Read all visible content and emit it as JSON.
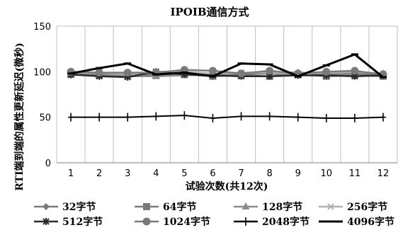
{
  "chart_data": {
    "type": "line",
    "title": "IPOIB通信方式",
    "xlabel": "试验次数(共12次)",
    "ylabel": "RTI端到端的属性更新延迟(微秒)",
    "categories": [
      "1",
      "2",
      "3",
      "4",
      "5",
      "6",
      "7",
      "8",
      "9",
      "10",
      "11",
      "12"
    ],
    "ylim": [
      0,
      150
    ],
    "yticks": [
      "0",
      "50",
      "100",
      "150"
    ],
    "grid": "vertical",
    "legend_position": "bottom",
    "series": [
      {
        "name": "32字节",
        "color": "#7a7a7a",
        "marker": "diamond",
        "values": [
          96,
          98,
          96,
          97,
          98,
          96,
          97,
          98,
          96,
          97,
          98,
          96
        ]
      },
      {
        "name": "64字节",
        "color": "#7a7a7a",
        "marker": "square",
        "values": [
          97,
          96,
          97,
          96,
          97,
          95,
          96,
          95,
          97,
          95,
          96,
          95
        ]
      },
      {
        "name": "128字节",
        "color": "#8c8c8c",
        "marker": "triangle",
        "values": [
          98,
          97,
          95,
          95,
          96,
          97,
          98,
          100,
          99,
          98,
          99,
          98
        ]
      },
      {
        "name": "256字节",
        "color": "#b0b0b0",
        "marker": "x",
        "values": [
          99,
          99,
          97,
          100,
          100,
          98,
          99,
          99,
          98,
          99,
          100,
          98
        ]
      },
      {
        "name": "512字节",
        "color": "#2a2a2a",
        "marker": "star",
        "values": [
          97,
          95,
          94,
          100,
          97,
          96,
          95,
          95,
          96,
          96,
          95,
          96
        ]
      },
      {
        "name": "1024字节",
        "color": "#7a7a7a",
        "marker": "circle",
        "values": [
          100,
          99,
          99,
          99,
          102,
          101,
          98,
          101,
          98,
          100,
          101,
          97
        ]
      },
      {
        "name": "2048字节",
        "color": "#000000",
        "marker": "plus",
        "values": [
          50,
          50,
          50,
          51,
          52,
          49,
          51,
          51,
          50,
          49,
          49,
          50
        ]
      },
      {
        "name": "4096字节",
        "color": "#000000",
        "marker": "dash",
        "values": [
          98,
          104,
          109,
          97,
          99,
          95,
          109,
          108,
          95,
          107,
          119,
          94
        ]
      }
    ]
  }
}
